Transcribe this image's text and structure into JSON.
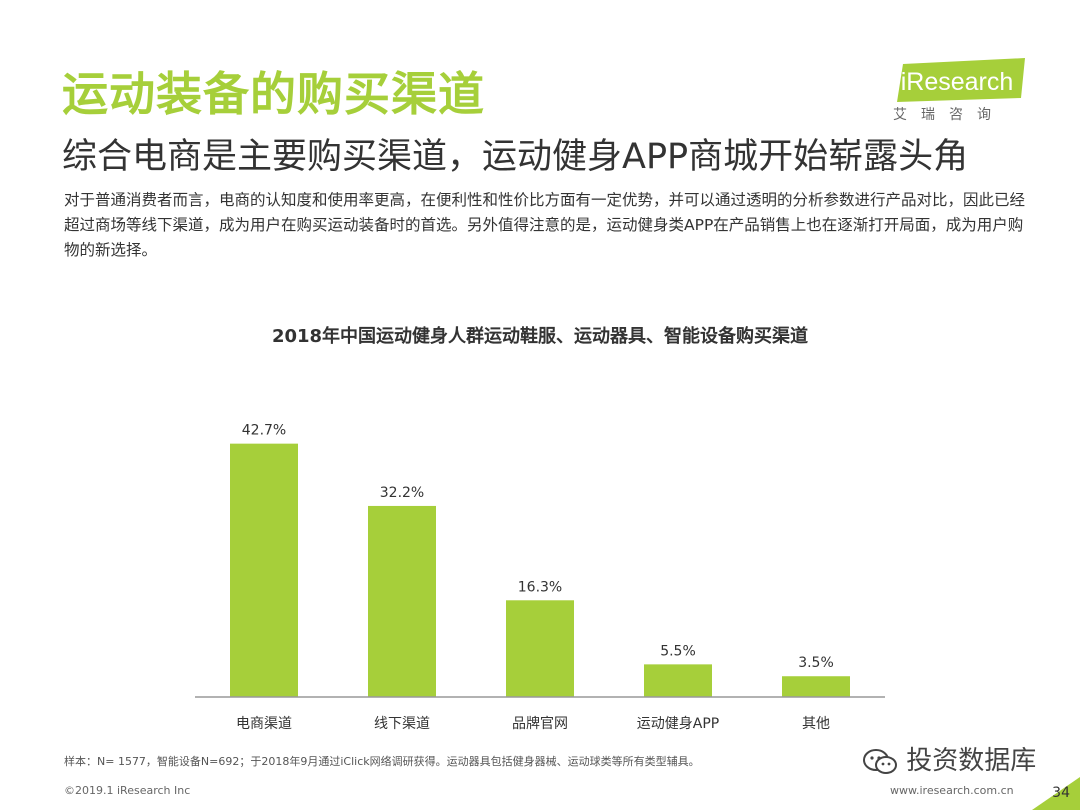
{
  "header": {
    "title": "运动装备的购买渠道",
    "subtitle": "综合电商是主要购买渠道，运动健身APP商城开始崭露头角",
    "description": "对于普通消费者而言，电商的认知度和使用率更高，在便利性和性价比方面有一定优势，并可以通过透明的分析参数进行产品对比，因此已经超过商场等线下渠道，成为用户在购买运动装备时的首选。另外值得注意的是，运动健身类APP在产品销售上也在逐渐打开局面，成为用户购物的新选择。"
  },
  "logo": {
    "brand": "iResearch",
    "cn": "艾瑞咨询",
    "color": "#a6cf3a"
  },
  "chart_data": {
    "type": "bar",
    "title": "2018年中国运动健身人群运动鞋服、运动器具、智能设备购买渠道",
    "categories": [
      "电商渠道",
      "线下渠道",
      "品牌官网",
      "运动健身APP",
      "其他"
    ],
    "values": [
      42.7,
      32.2,
      16.3,
      5.5,
      3.5
    ],
    "labels": [
      "42.7%",
      "32.2%",
      "16.3%",
      "5.5%",
      "3.5%"
    ],
    "unit": "%",
    "ylim": [
      0,
      45
    ],
    "color": "#a6cf3a",
    "grid": false
  },
  "note": "样本：N= 1577，智能设备N=692；于2018年9月通过iClick网络调研获得。运动器具包括健身器械、运动球类等所有类型辅具。",
  "footer": {
    "left": "©2019.1 iResearch Inc",
    "url": "www.iresearch.com.cn",
    "page": "34",
    "watermark": "投资数据库"
  }
}
